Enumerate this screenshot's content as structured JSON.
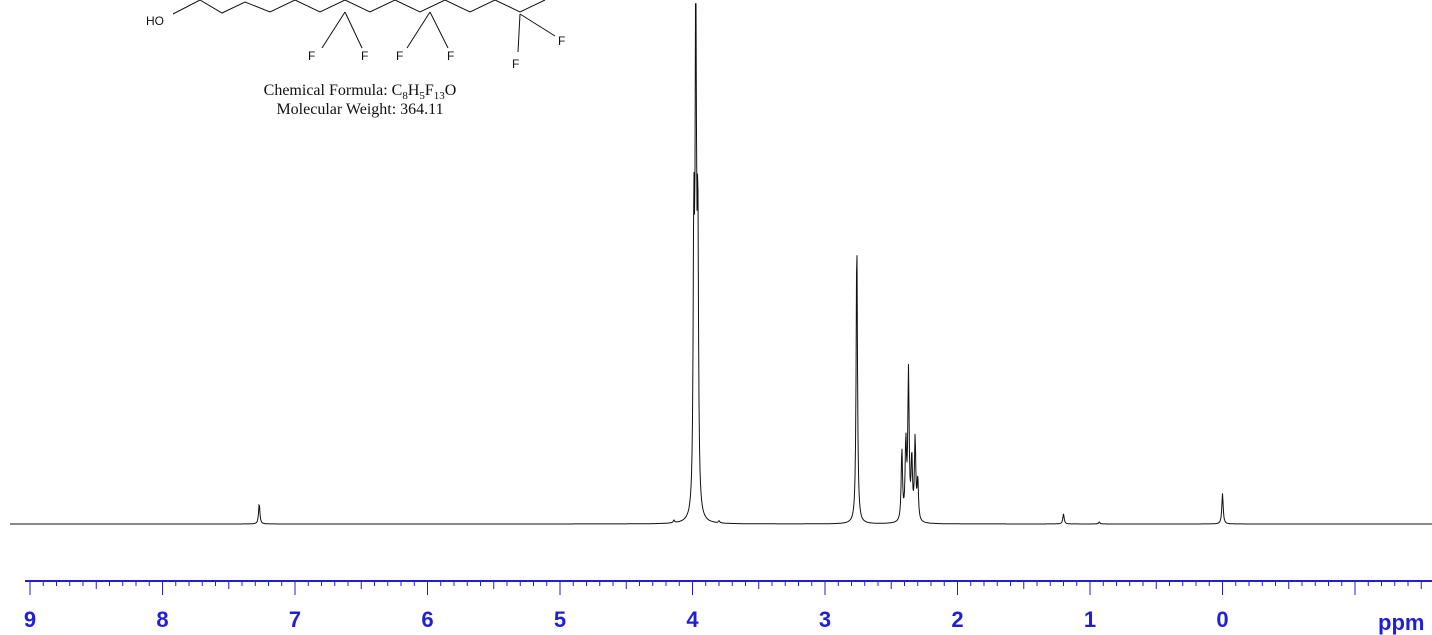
{
  "structure": {
    "atom_labels": {
      "ho": "HO",
      "fluorines": [
        "F",
        "F",
        "F",
        "F",
        "F",
        "F"
      ]
    },
    "formula_label": "Chemical Formula:",
    "formula_parts": [
      {
        "text": "C",
        "sub": "8"
      },
      {
        "text": "H",
        "sub": "5"
      },
      {
        "text": "F",
        "sub": "13"
      },
      {
        "text": "O",
        "sub": ""
      }
    ],
    "molecular_weight_label": "Molecular Weight:",
    "molecular_weight_value": "364.11"
  },
  "chart_data": {
    "type": "line",
    "title": "",
    "xlabel": "ppm",
    "ylabel": "",
    "x_reversed": true,
    "xlim": [
      9.1,
      -1.6
    ],
    "ylim": [
      0,
      1
    ],
    "xticks": [
      9,
      8,
      7,
      6,
      5,
      4,
      3,
      2,
      1,
      0
    ],
    "grid": false,
    "colors": {
      "axis": "#1f1fd6",
      "trace": "#111111"
    },
    "peaks": [
      {
        "ppm": 7.27,
        "height": 0.04
      },
      {
        "ppm": 4.14,
        "height": 0.005
      },
      {
        "ppm": 3.99,
        "height": 0.53
      },
      {
        "ppm": 3.975,
        "height": 1.0
      },
      {
        "ppm": 3.96,
        "height": 0.55
      },
      {
        "ppm": 3.8,
        "height": 0.004
      },
      {
        "ppm": 2.76,
        "height": 0.56
      },
      {
        "ppm": 2.42,
        "height": 0.14
      },
      {
        "ppm": 2.39,
        "height": 0.15
      },
      {
        "ppm": 2.37,
        "height": 0.29
      },
      {
        "ppm": 2.345,
        "height": 0.12
      },
      {
        "ppm": 2.32,
        "height": 0.16
      },
      {
        "ppm": 2.3,
        "height": 0.08
      },
      {
        "ppm": 1.2,
        "height": 0.02
      },
      {
        "ppm": 0.93,
        "height": 0.004
      },
      {
        "ppm": 0.0,
        "height": 0.06
      }
    ]
  }
}
